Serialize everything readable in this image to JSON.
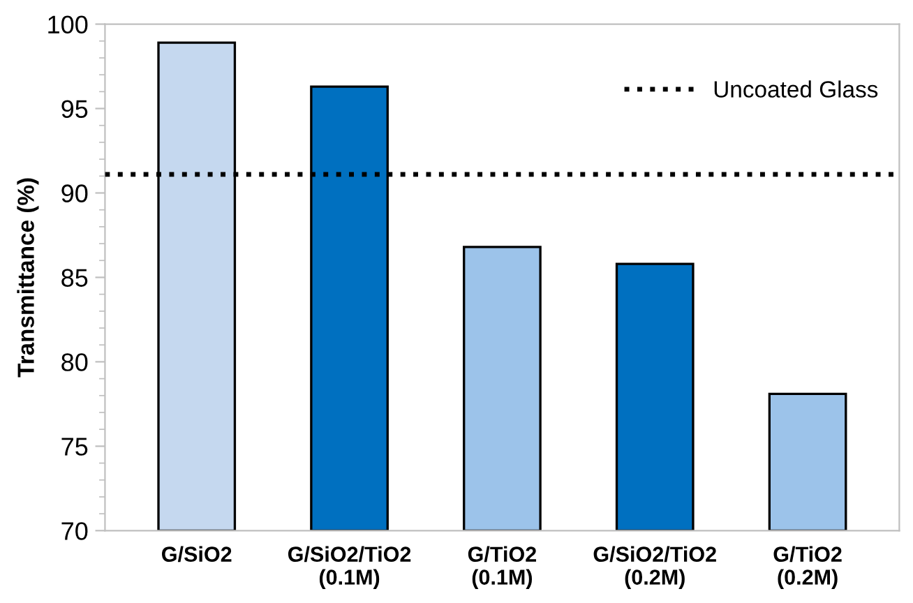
{
  "chart_data": {
    "type": "bar",
    "ylabel": "Transmittance (%)",
    "categories": [
      "G/SiO2",
      "G/SiO2/TiO2\n(0.1M)",
      "G/TiO2\n(0.1M)",
      "G/SiO2/TiO2\n(0.2M)",
      "G/TiO2\n(0.2M)"
    ],
    "values": [
      98.9,
      96.3,
      86.8,
      85.8,
      78.1
    ],
    "colors": [
      "#c5d8ef",
      "#0070c0",
      "#9cc3ea",
      "#0070c0",
      "#9cc3ea"
    ],
    "ylim": [
      70,
      100
    ],
    "yticks": [
      70,
      75,
      80,
      85,
      90,
      95,
      100
    ],
    "ref_lines": [
      {
        "axis": "y",
        "value": 91.1,
        "label": "Uncoated Glass",
        "color": "#000000",
        "line_style": "dotted"
      }
    ],
    "legend": "top right",
    "grid": false
  }
}
